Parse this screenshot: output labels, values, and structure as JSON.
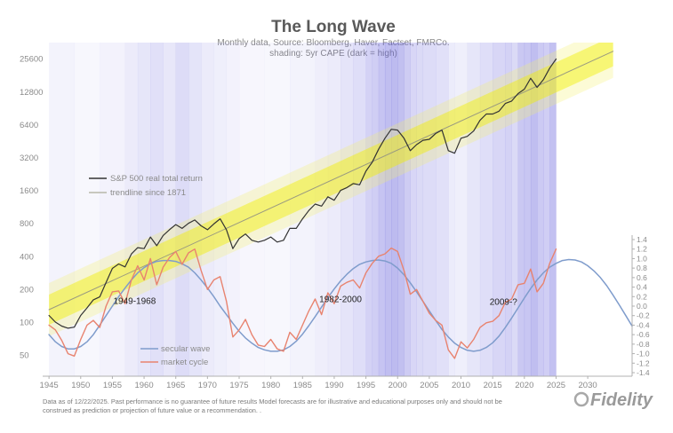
{
  "chart_data": {
    "type": "line",
    "title": "The Long Wave",
    "subtitle_1": "Monthly data,  Source: Bloomberg, Haver, Factset, FMRCo.",
    "subtitle_2": "shading: 5yr CAPE (dark = high)",
    "x_range": [
      1944,
      2037
    ],
    "x_ticks": [
      1945,
      1950,
      1955,
      1960,
      1965,
      1970,
      1975,
      1980,
      1985,
      1990,
      1995,
      2000,
      2005,
      2010,
      2015,
      2020,
      2025,
      2030
    ],
    "y_left": {
      "scale": "log2",
      "range": [
        32,
        36000
      ],
      "ticks": [
        50,
        100,
        200,
        400,
        800,
        1600,
        3200,
        6400,
        12800,
        25600
      ]
    },
    "y_right": {
      "range": [
        -1.4,
        1.4
      ],
      "ticks": [
        "1.4",
        "1.2",
        "1.0",
        "0.8",
        "0.6",
        "0.4",
        "0.2",
        "0.0",
        "-0.2",
        "-0.4",
        "-0.6",
        "-0.8",
        "-1.0",
        "-1.2",
        "-1.4"
      ]
    },
    "series": [
      {
        "name": "S&P 500 real total return",
        "axis": "left",
        "color": "#333333",
        "points": [
          [
            1945,
            115
          ],
          [
            1946,
            100
          ],
          [
            1947,
            92
          ],
          [
            1948,
            88
          ],
          [
            1949,
            90
          ],
          [
            1950,
            115
          ],
          [
            1951,
            135
          ],
          [
            1952,
            160
          ],
          [
            1953,
            170
          ],
          [
            1954,
            230
          ],
          [
            1955,
            310
          ],
          [
            1956,
            340
          ],
          [
            1957,
            320
          ],
          [
            1958,
            420
          ],
          [
            1959,
            480
          ],
          [
            1960,
            470
          ],
          [
            1961,
            600
          ],
          [
            1962,
            500
          ],
          [
            1963,
            620
          ],
          [
            1964,
            700
          ],
          [
            1965,
            780
          ],
          [
            1966,
            720
          ],
          [
            1967,
            800
          ],
          [
            1968,
            860
          ],
          [
            1969,
            760
          ],
          [
            1970,
            700
          ],
          [
            1971,
            790
          ],
          [
            1972,
            880
          ],
          [
            1973,
            700
          ],
          [
            1974,
            470
          ],
          [
            1975,
            580
          ],
          [
            1976,
            640
          ],
          [
            1977,
            560
          ],
          [
            1978,
            540
          ],
          [
            1979,
            560
          ],
          [
            1980,
            600
          ],
          [
            1981,
            540
          ],
          [
            1982,
            560
          ],
          [
            1983,
            720
          ],
          [
            1984,
            720
          ],
          [
            1985,
            880
          ],
          [
            1986,
            1050
          ],
          [
            1987,
            1200
          ],
          [
            1988,
            1150
          ],
          [
            1989,
            1400
          ],
          [
            1990,
            1300
          ],
          [
            1991,
            1600
          ],
          [
            1992,
            1700
          ],
          [
            1993,
            1850
          ],
          [
            1994,
            1800
          ],
          [
            1995,
            2400
          ],
          [
            1996,
            2900
          ],
          [
            1997,
            3800
          ],
          [
            1998,
            4800
          ],
          [
            1999,
            5800
          ],
          [
            2000,
            5700
          ],
          [
            2001,
            4800
          ],
          [
            2002,
            3700
          ],
          [
            2003,
            4200
          ],
          [
            2004,
            4600
          ],
          [
            2005,
            4700
          ],
          [
            2006,
            5300
          ],
          [
            2007,
            5700
          ],
          [
            2008,
            3700
          ],
          [
            2009,
            3500
          ],
          [
            2010,
            4800
          ],
          [
            2011,
            5000
          ],
          [
            2012,
            5600
          ],
          [
            2013,
            7000
          ],
          [
            2014,
            8000
          ],
          [
            2015,
            8000
          ],
          [
            2016,
            8500
          ],
          [
            2017,
            10000
          ],
          [
            2018,
            10500
          ],
          [
            2019,
            12300
          ],
          [
            2020,
            13500
          ],
          [
            2021,
            17000
          ],
          [
            2022,
            14000
          ],
          [
            2023,
            16500
          ],
          [
            2024,
            21000
          ],
          [
            2025,
            25500
          ]
        ]
      },
      {
        "name": "trendline since 1871",
        "axis": "left",
        "color": "#9a9a80",
        "points": [
          [
            1945,
            130
          ],
          [
            2034,
            30000
          ]
        ]
      },
      {
        "name": "secular wave",
        "axis": "right",
        "color": "#7f9ccc",
        "points": [
          [
            1945,
            -0.6
          ],
          [
            1946,
            -0.75
          ],
          [
            1947,
            -0.85
          ],
          [
            1948,
            -0.9
          ],
          [
            1949,
            -0.9
          ],
          [
            1950,
            -0.85
          ],
          [
            1951,
            -0.75
          ],
          [
            1952,
            -0.6
          ],
          [
            1953,
            -0.4
          ],
          [
            1954,
            -0.2
          ],
          [
            1955,
            0.0
          ],
          [
            1956,
            0.2
          ],
          [
            1957,
            0.38
          ],
          [
            1958,
            0.55
          ],
          [
            1959,
            0.7
          ],
          [
            1960,
            0.81
          ],
          [
            1961,
            0.89
          ],
          [
            1962,
            0.94
          ],
          [
            1963,
            0.96
          ],
          [
            1964,
            0.96
          ],
          [
            1965,
            0.94
          ],
          [
            1966,
            0.89
          ],
          [
            1967,
            0.82
          ],
          [
            1968,
            0.7
          ],
          [
            1969,
            0.55
          ],
          [
            1970,
            0.38
          ],
          [
            1971,
            0.2
          ],
          [
            1972,
            0.0
          ],
          [
            1973,
            -0.18
          ],
          [
            1974,
            -0.36
          ],
          [
            1975,
            -0.53
          ],
          [
            1976,
            -0.67
          ],
          [
            1977,
            -0.78
          ],
          [
            1978,
            -0.87
          ],
          [
            1979,
            -0.92
          ],
          [
            1980,
            -0.95
          ],
          [
            1981,
            -0.95
          ],
          [
            1982,
            -0.92
          ],
          [
            1983,
            -0.85
          ],
          [
            1984,
            -0.74
          ],
          [
            1985,
            -0.59
          ],
          [
            1986,
            -0.41
          ],
          [
            1987,
            -0.22
          ],
          [
            1988,
            -0.02
          ],
          [
            1989,
            0.18
          ],
          [
            1990,
            0.36
          ],
          [
            1991,
            0.53
          ],
          [
            1992,
            0.67
          ],
          [
            1993,
            0.79
          ],
          [
            1994,
            0.88
          ],
          [
            1995,
            0.93
          ],
          [
            1996,
            0.96
          ],
          [
            1997,
            0.97
          ],
          [
            1998,
            0.95
          ],
          [
            1999,
            0.9
          ],
          [
            2000,
            0.8
          ],
          [
            2001,
            0.66
          ],
          [
            2002,
            0.49
          ],
          [
            2003,
            0.3
          ],
          [
            2004,
            0.1
          ],
          [
            2005,
            -0.1
          ],
          [
            2006,
            -0.3
          ],
          [
            2007,
            -0.49
          ],
          [
            2008,
            -0.65
          ],
          [
            2009,
            -0.78
          ],
          [
            2010,
            -0.87
          ],
          [
            2011,
            -0.93
          ],
          [
            2012,
            -0.95
          ],
          [
            2013,
            -0.93
          ],
          [
            2014,
            -0.87
          ],
          [
            2015,
            -0.77
          ],
          [
            2016,
            -0.63
          ],
          [
            2017,
            -0.45
          ],
          [
            2018,
            -0.25
          ],
          [
            2019,
            -0.04
          ],
          [
            2020,
            0.17
          ],
          [
            2021,
            0.37
          ],
          [
            2022,
            0.55
          ],
          [
            2023,
            0.7
          ],
          [
            2024,
            0.82
          ],
          [
            2025,
            0.9
          ],
          [
            2026,
            0.96
          ],
          [
            2027,
            0.98
          ],
          [
            2028,
            0.97
          ],
          [
            2029,
            0.93
          ],
          [
            2030,
            0.85
          ],
          [
            2031,
            0.74
          ],
          [
            2032,
            0.6
          ],
          [
            2033,
            0.43
          ],
          [
            2034,
            0.23
          ],
          [
            2035,
            0.02
          ],
          [
            2036,
            -0.2
          ],
          [
            2037,
            -0.42
          ]
        ]
      },
      {
        "name": "market cycle",
        "axis": "right",
        "color": "#e8836f",
        "points": [
          [
            1945,
            -0.4
          ],
          [
            1946,
            -0.5
          ],
          [
            1947,
            -0.72
          ],
          [
            1948,
            -1.0
          ],
          [
            1949,
            -1.05
          ],
          [
            1950,
            -0.7
          ],
          [
            1951,
            -0.4
          ],
          [
            1952,
            -0.3
          ],
          [
            1953,
            -0.45
          ],
          [
            1954,
            0.0
          ],
          [
            1955,
            0.3
          ],
          [
            1956,
            0.32
          ],
          [
            1957,
            0.05
          ],
          [
            1958,
            0.55
          ],
          [
            1959,
            0.85
          ],
          [
            1960,
            0.55
          ],
          [
            1961,
            1.0
          ],
          [
            1962,
            0.45
          ],
          [
            1963,
            0.82
          ],
          [
            1964,
            1.02
          ],
          [
            1965,
            1.15
          ],
          [
            1966,
            0.88
          ],
          [
            1967,
            1.12
          ],
          [
            1968,
            1.2
          ],
          [
            1969,
            0.75
          ],
          [
            1970,
            0.35
          ],
          [
            1971,
            0.55
          ],
          [
            1972,
            0.62
          ],
          [
            1973,
            0.1
          ],
          [
            1974,
            -0.65
          ],
          [
            1975,
            -0.5
          ],
          [
            1976,
            -0.28
          ],
          [
            1977,
            -0.6
          ],
          [
            1978,
            -0.82
          ],
          [
            1979,
            -0.85
          ],
          [
            1980,
            -0.7
          ],
          [
            1981,
            -0.9
          ],
          [
            1982,
            -0.95
          ],
          [
            1983,
            -0.55
          ],
          [
            1984,
            -0.7
          ],
          [
            1985,
            -0.4
          ],
          [
            1986,
            -0.1
          ],
          [
            1987,
            0.15
          ],
          [
            1988,
            -0.18
          ],
          [
            1989,
            0.28
          ],
          [
            1990,
            0.05
          ],
          [
            1991,
            0.42
          ],
          [
            1992,
            0.5
          ],
          [
            1993,
            0.55
          ],
          [
            1994,
            0.38
          ],
          [
            1995,
            0.7
          ],
          [
            1996,
            0.9
          ],
          [
            1997,
            1.05
          ],
          [
            1998,
            1.1
          ],
          [
            1999,
            1.22
          ],
          [
            2000,
            1.15
          ],
          [
            2001,
            0.75
          ],
          [
            2002,
            0.25
          ],
          [
            2003,
            0.35
          ],
          [
            2004,
            0.1
          ],
          [
            2005,
            -0.15
          ],
          [
            2006,
            -0.3
          ],
          [
            2007,
            -0.4
          ],
          [
            2008,
            -0.92
          ],
          [
            2009,
            -1.1
          ],
          [
            2010,
            -0.75
          ],
          [
            2011,
            -0.88
          ],
          [
            2012,
            -0.7
          ],
          [
            2013,
            -0.45
          ],
          [
            2014,
            -0.35
          ],
          [
            2015,
            -0.32
          ],
          [
            2016,
            -0.2
          ],
          [
            2017,
            0.08
          ],
          [
            2018,
            0.15
          ],
          [
            2019,
            0.45
          ],
          [
            2020,
            0.48
          ],
          [
            2021,
            0.78
          ],
          [
            2022,
            0.3
          ],
          [
            2023,
            0.48
          ],
          [
            2024,
            0.9
          ],
          [
            2025,
            1.2
          ]
        ]
      }
    ],
    "band": {
      "name": "trend band",
      "color": "#f2f000",
      "points": [
        [
          1945,
          130
        ],
        [
          2034,
          30000
        ]
      ]
    },
    "shading": {
      "name": "5yr CAPE",
      "dark_color": "#5a55d8",
      "years": [
        1945,
        1949,
        1953,
        1957,
        1959,
        1961,
        1963,
        1965,
        1967,
        1969,
        1971,
        1973,
        1975,
        1979,
        1983,
        1987,
        1989,
        1991,
        1993,
        1995,
        1996,
        1997,
        1998,
        1999,
        2000,
        2001,
        2002,
        2003,
        2004,
        2006,
        2008,
        2009,
        2011,
        2013,
        2015,
        2017,
        2018,
        2019,
        2020,
        2021,
        2022,
        2023,
        2024,
        2025
      ],
      "levels": [
        0.08,
        0.02,
        0.1,
        0.22,
        0.3,
        0.4,
        0.28,
        0.45,
        0.33,
        0.22,
        0.15,
        0.1,
        0.03,
        0.02,
        0.08,
        0.16,
        0.22,
        0.32,
        0.42,
        0.62,
        0.68,
        0.85,
        0.95,
        1.0,
        0.92,
        0.72,
        0.55,
        0.5,
        0.46,
        0.4,
        0.2,
        0.15,
        0.3,
        0.42,
        0.55,
        0.62,
        0.5,
        0.78,
        0.82,
        0.95,
        0.75,
        0.68,
        0.9,
        0.95
      ]
    },
    "annotations": [
      {
        "text": "1949-1968",
        "x": 1958.5,
        "y_right": 0.05
      },
      {
        "text": "1982-2000",
        "x": 1991.0,
        "y_right": 0.08
      },
      {
        "text": "2009-?",
        "x": 2016.7,
        "y_right": 0.03
      }
    ],
    "legend_top": [
      "S&P 500 real total return",
      "trendline since 1871"
    ],
    "legend_bottom": [
      "secular wave",
      "market cycle"
    ]
  },
  "footnote": {
    "line1": "Data as of 12/22/2025. Past performance is no guarantee of future results Model forecasts are for illustrative and educational purposes only and should not be",
    "line2": "construed as prediction or projection of future value or a recommendation. ."
  },
  "brand": {
    "name": "Fidelity",
    "color": "#9a9a9a"
  }
}
